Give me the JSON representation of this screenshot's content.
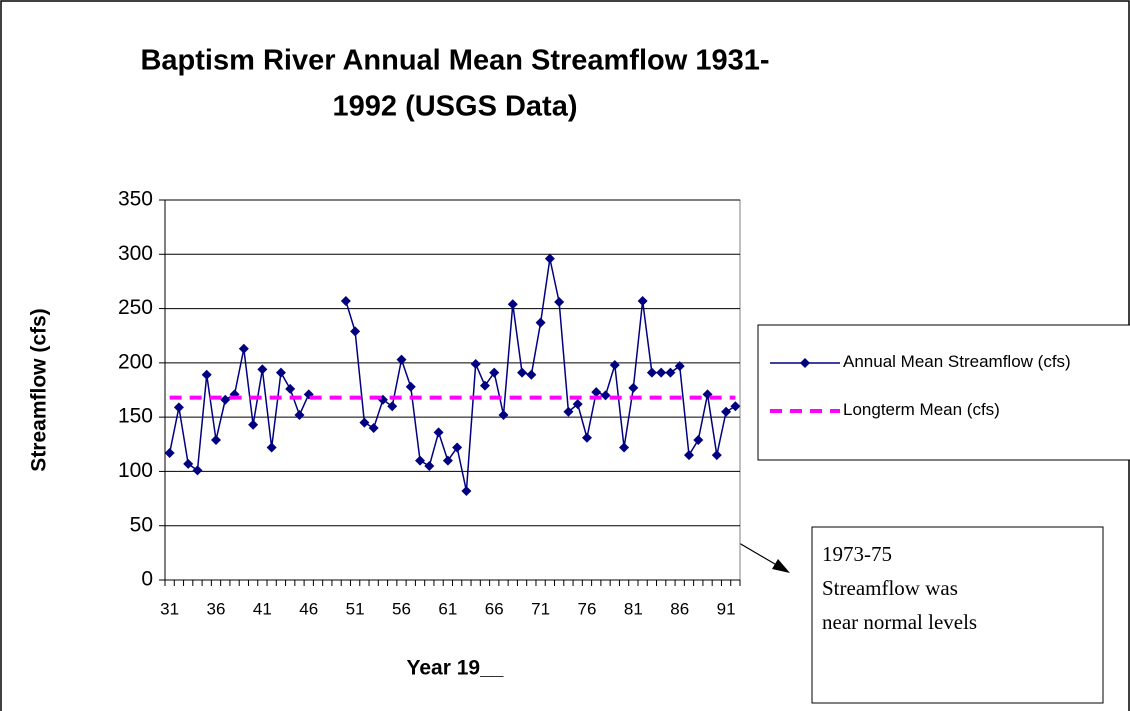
{
  "chart_data": {
    "type": "line",
    "title": [
      "Baptism River Annual Mean Streamflow 1931-",
      "1992 (USGS Data)"
    ],
    "x_label": "Year 19__",
    "y_label": "Streamflow (cfs)",
    "categories": [
      "31",
      null,
      null,
      null,
      null,
      "36",
      null,
      null,
      null,
      null,
      "41",
      null,
      null,
      null,
      null,
      "46",
      null,
      null,
      null,
      null,
      "51",
      null,
      null,
      null,
      null,
      "56",
      null,
      null,
      null,
      null,
      "61",
      null,
      null,
      null,
      null,
      "66",
      null,
      null,
      null,
      null,
      "71",
      null,
      null,
      null,
      null,
      "76",
      null,
      null,
      null,
      null,
      "81",
      null,
      null,
      null,
      null,
      "86",
      null,
      null,
      null,
      null,
      "91",
      null
    ],
    "series": [
      {
        "name": "Annual Mean Streamflow (cfs)",
        "color": "#000080",
        "style": "solid",
        "marker": "diamond",
        "values": [
          117,
          159,
          107,
          101,
          189,
          129,
          166,
          171,
          213,
          143,
          194,
          122,
          191,
          176,
          152,
          171,
          null,
          null,
          null,
          257,
          229,
          145,
          140,
          166,
          160,
          203,
          178,
          110,
          105,
          136,
          110,
          122,
          82,
          199,
          179,
          191,
          152,
          254,
          191,
          189,
          237,
          296,
          256,
          155,
          162,
          131,
          173,
          170,
          198,
          122,
          177,
          257,
          191,
          191,
          191,
          197,
          115,
          129,
          171,
          115,
          155,
          160
        ]
      },
      {
        "name": "Longterm Mean (cfs)",
        "color": "#ff00ff",
        "style": "dashed",
        "marker": "none",
        "values": [
          168,
          168,
          168,
          168,
          168,
          168,
          168,
          168,
          168,
          168,
          168,
          168,
          168,
          168,
          168,
          168,
          168,
          168,
          168,
          168,
          168,
          168,
          168,
          168,
          168,
          168,
          168,
          168,
          168,
          168,
          168,
          168,
          168,
          168,
          168,
          168,
          168,
          168,
          168,
          168,
          168,
          168,
          168,
          168,
          168,
          168,
          168,
          168,
          168,
          168,
          168,
          168,
          168,
          168,
          168,
          168,
          168,
          168,
          168,
          168,
          168,
          168
        ]
      }
    ],
    "ylim": [
      0,
      350
    ],
    "yticks": [
      0,
      50,
      100,
      150,
      200,
      250,
      300,
      350
    ],
    "grid": true,
    "legend": "right",
    "annotation": [
      "1973-75",
      "Streamflow was",
      "near normal levels"
    ]
  }
}
